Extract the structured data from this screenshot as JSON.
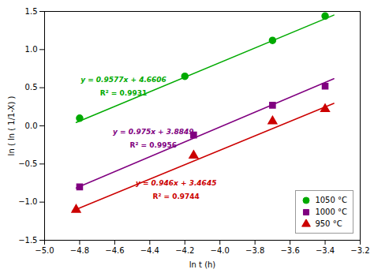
{
  "chart_data": {
    "type": "scatter",
    "xlabel": "ln t (h)",
    "ylabel": "ln ( ln ( 1/1-X) )",
    "xlim": [
      -5.0,
      -3.2
    ],
    "ylim": [
      -1.5,
      1.5
    ],
    "xticks": [
      {
        "value": -5.0,
        "label": "−5.0"
      },
      {
        "value": -4.8,
        "label": "−4.8"
      },
      {
        "value": -4.6,
        "label": "−4.6"
      },
      {
        "value": -4.4,
        "label": "−4.4"
      },
      {
        "value": -4.2,
        "label": "−4.2"
      },
      {
        "value": -4.0,
        "label": "−4.0"
      },
      {
        "value": -3.8,
        "label": "−3.8"
      },
      {
        "value": -3.6,
        "label": "−3.6"
      },
      {
        "value": -3.4,
        "label": "−3.4"
      },
      {
        "value": -3.2,
        "label": "−3.2"
      }
    ],
    "yticks": [
      {
        "value": -1.5,
        "label": "−1.5"
      },
      {
        "value": -1.0,
        "label": "−1.0"
      },
      {
        "value": -0.5,
        "label": "−0.5"
      },
      {
        "value": 0.0,
        "label": "0.0"
      },
      0.5,
      {
        "value": 1.0,
        "label": "1.0"
      },
      1.5
    ],
    "grid": false,
    "legend": "lower right",
    "series": [
      {
        "name": "1050 °C",
        "color": "#00aa00",
        "marker": "circle",
        "x": [
          -4.8,
          -4.2,
          -3.7,
          -3.4
        ],
        "y": [
          0.1,
          0.65,
          1.12,
          1.44
        ],
        "fit": {
          "x": [
            -4.82,
            -3.35
          ],
          "y": [
            0.044486,
            1.452305
          ]
        },
        "annotations": [
          {
            "text": "y = 0.9577x + 4.6606",
            "x": -4.55,
            "y": 0.6
          },
          {
            "text": "R² = 0.9931",
            "x": -4.55,
            "y": 0.425
          }
        ]
      },
      {
        "name": "1000 °C",
        "color": "#800080",
        "marker": "square",
        "x": [
          -4.8,
          -4.15,
          -3.7,
          -3.4
        ],
        "y": [
          -0.8,
          -0.12,
          0.27,
          0.52
        ],
        "fit": {
          "x": [
            -4.82,
            -3.35
          ],
          "y": [
            -0.8146,
            0.61865
          ]
        },
        "annotations": [
          {
            "text": "y = 0.975x + 3.8849",
            "x": -4.38,
            "y": -0.08
          },
          {
            "text": "R² = 0.9956",
            "x": -4.38,
            "y": -0.255
          }
        ]
      },
      {
        "name": "950 °C",
        "color": "#cc0000",
        "marker": "triangle",
        "x": [
          -4.82,
          -4.15,
          -3.7,
          -3.4
        ],
        "y": [
          -1.1,
          -0.39,
          0.06,
          0.22
        ],
        "fit": {
          "x": [
            -4.84,
            -3.35
          ],
          "y": [
            -1.11414,
            0.2954
          ]
        },
        "annotations": [
          {
            "text": "y = 0.946x + 3.4645",
            "x": -4.25,
            "y": -0.75
          },
          {
            "text": "R² = 0.9744",
            "x": -4.25,
            "y": -0.925
          }
        ]
      }
    ]
  }
}
